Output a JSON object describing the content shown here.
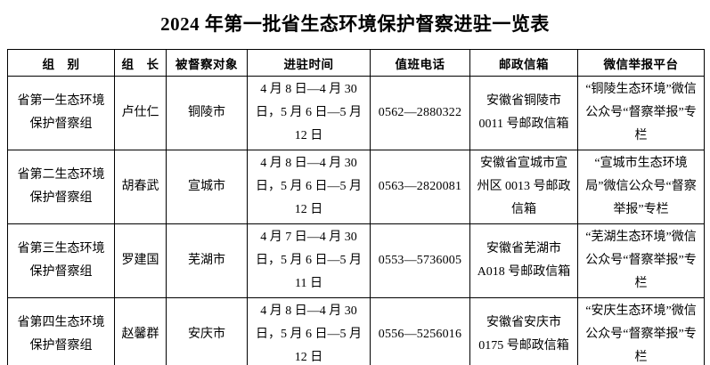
{
  "page": {
    "title": "2024 年第一批省生态环境保护督察进驻一览表",
    "background_color": "#ffffff",
    "text_color": "#000000",
    "table_border_color": "#000000"
  },
  "table": {
    "headers": {
      "group": "组　别",
      "leader": "组　长",
      "target": "被督察对象",
      "period": "进驻时间",
      "phone": "值班电话",
      "mailbox": "邮政信箱",
      "wechat": "微信举报平台"
    },
    "rows": [
      {
        "group": "省第一生态环境保护督察组",
        "leader": "卢仕仁",
        "target": "铜陵市",
        "period": "4 月 8 日—4 月 30 日，5 月 6 日—5 月 12 日",
        "phone": "0562—2880322",
        "mailbox": "安徽省铜陵市 0011 号邮政信箱",
        "wechat": "“铜陵生态环境”微信公众号“督察举报”专栏"
      },
      {
        "group": "省第二生态环境保护督察组",
        "leader": "胡春武",
        "target": "宣城市",
        "period": "4 月 8 日—4 月 30 日，5 月 6 日—5 月 12 日",
        "phone": "0563—2820081",
        "mailbox": "安徽省宣城市宣州区 0013 号邮政信箱",
        "wechat": "“宣城市生态环境局”微信公众号“督察举报”专栏"
      },
      {
        "group": "省第三生态环境保护督察组",
        "leader": "罗建国",
        "target": "芜湖市",
        "period": "4 月 7 日—4 月 30 日，5 月 6 日—5 月 11 日",
        "phone": "0553—5736005",
        "mailbox": "安徽省芜湖市 A018 号邮政信箱",
        "wechat": "“芜湖生态环境”微信公众号“督察举报”专栏"
      },
      {
        "group": "省第四生态环境保护督察组",
        "leader": "赵馨群",
        "target": "安庆市",
        "period": "4 月 8 日—4 月 30 日，5 月 6 日—5 月 12 日",
        "phone": "0556—5256016",
        "mailbox": "安徽省安庆市 0175 号邮政信箱",
        "wechat": "“安庆生态环境”微信公众号“督察举报”专栏"
      }
    ]
  }
}
